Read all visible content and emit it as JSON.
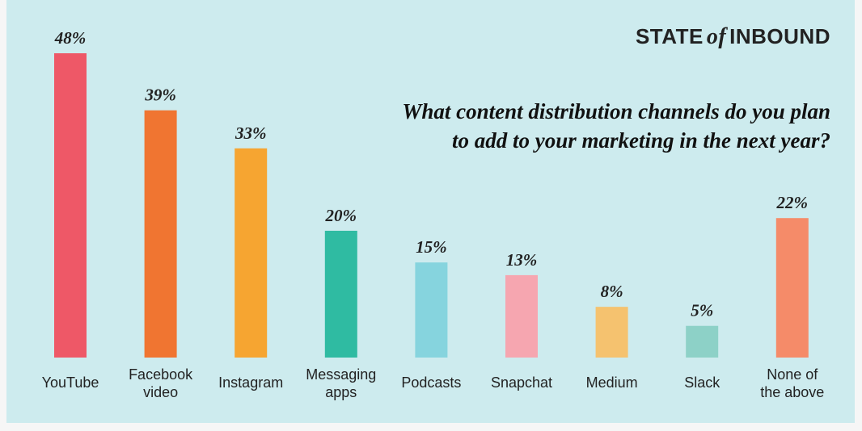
{
  "brand": {
    "prefix": "STATE",
    "of": "of",
    "suffix": "INBOUND"
  },
  "question": {
    "line1": "What content distribution channels do you plan",
    "line2": "to add to your marketing in the next year?"
  },
  "colors": {
    "background": "#cdebee",
    "bars": [
      "#ee5867",
      "#f07531",
      "#f6a531",
      "#2fbba2",
      "#86d4de",
      "#f6a6b0",
      "#f5c26f",
      "#8dd1c7",
      "#f58b69"
    ]
  },
  "chart_data": {
    "type": "bar",
    "categories": [
      "YouTube",
      "Facebook video",
      "Instagram",
      "Messaging apps",
      "Podcasts",
      "Snapchat",
      "Medium",
      "Slack",
      "None of the above"
    ],
    "category_lines": [
      [
        "YouTube"
      ],
      [
        "Facebook",
        "video"
      ],
      [
        "Instagram"
      ],
      [
        "Messaging",
        "apps"
      ],
      [
        "Podcasts"
      ],
      [
        "Snapchat"
      ],
      [
        "Medium"
      ],
      [
        "Slack"
      ],
      [
        "None of",
        "the above"
      ]
    ],
    "values": [
      48,
      39,
      33,
      20,
      15,
      13,
      8,
      5,
      22
    ],
    "data_labels": [
      "48%",
      "39%",
      "33%",
      "20%",
      "15%",
      "13%",
      "8%",
      "5%",
      "22%"
    ],
    "ylim": [
      0,
      48
    ],
    "grid": false,
    "legend": "none"
  }
}
